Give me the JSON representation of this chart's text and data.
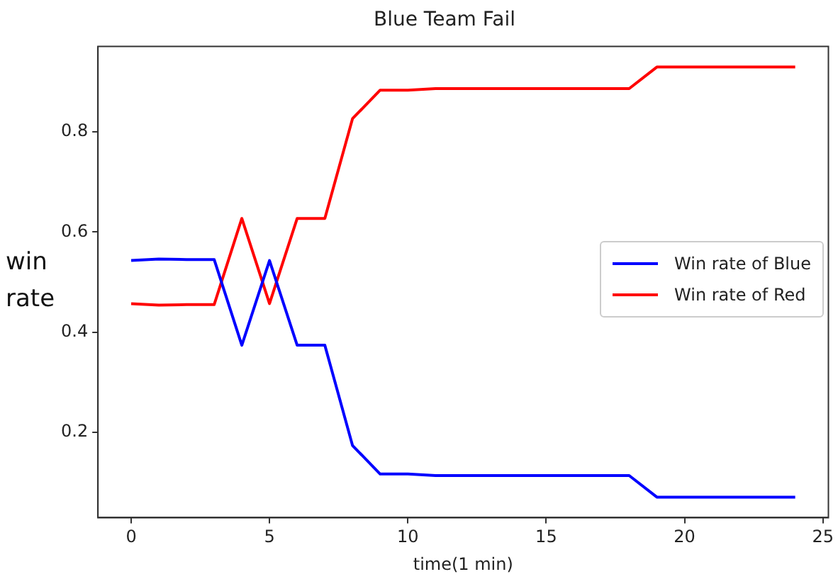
{
  "chart_data": {
    "type": "line",
    "title": "Blue Team Fail",
    "xlabel": "time(1 min)",
    "ylabel": "win rate",
    "x": [
      0,
      1,
      2,
      3,
      4,
      5,
      6,
      7,
      8,
      9,
      10,
      11,
      12,
      13,
      14,
      15,
      16,
      17,
      18,
      19,
      20,
      21,
      22,
      23,
      24
    ],
    "series": [
      {
        "name": "Win rate of Blue",
        "color": "#0000ff",
        "values": [
          0.543,
          0.546,
          0.545,
          0.545,
          0.374,
          0.543,
          0.374,
          0.374,
          0.174,
          0.117,
          0.117,
          0.114,
          0.114,
          0.114,
          0.114,
          0.114,
          0.114,
          0.114,
          0.114,
          0.071,
          0.071,
          0.071,
          0.071,
          0.071,
          0.071
        ]
      },
      {
        "name": "Win rate of Red",
        "color": "#ff0000",
        "values": [
          0.457,
          0.454,
          0.455,
          0.455,
          0.627,
          0.457,
          0.627,
          0.627,
          0.826,
          0.883,
          0.883,
          0.886,
          0.886,
          0.886,
          0.886,
          0.886,
          0.886,
          0.886,
          0.886,
          0.929,
          0.929,
          0.929,
          0.929,
          0.929,
          0.929
        ]
      }
    ],
    "xlim": [
      -1.2,
      25.2
    ],
    "ylim": [
      0.03,
      0.97
    ],
    "xticks": [
      0,
      5,
      10,
      15,
      20,
      25
    ],
    "yticks": [
      0.2,
      0.4,
      0.6,
      0.8
    ],
    "grid": false,
    "legend": "right",
    "marker": "none",
    "line_style": "solid"
  }
}
